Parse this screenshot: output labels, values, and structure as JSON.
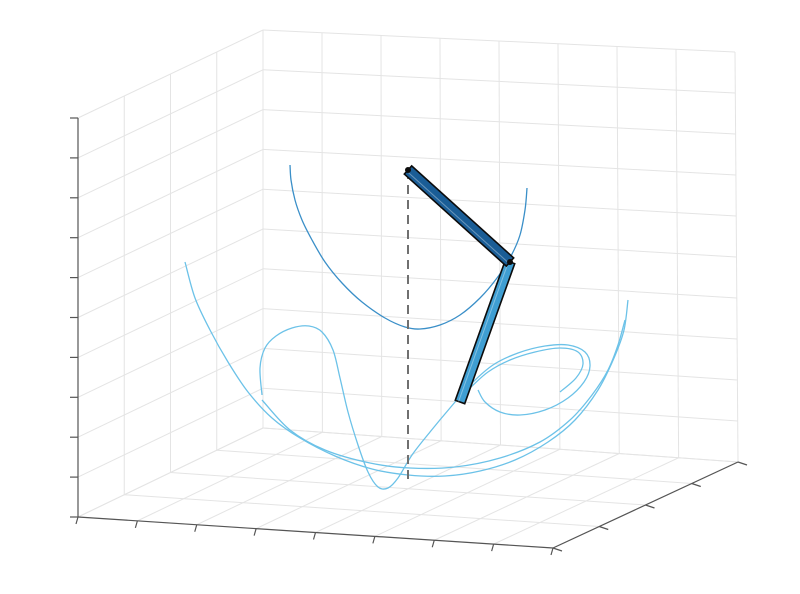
{
  "chart_data": {
    "type": "3d-line",
    "title": "",
    "xlabel": "",
    "ylabel": "",
    "zlabel": "",
    "grid": true,
    "view": "3d-perspective",
    "colors": {
      "upper_arc": "#3a8fc8",
      "lower_trace": "#6cc2e8",
      "link_1": "#1a5d96",
      "link_2": "#3f9ed2",
      "link_outline": "#0c0c0c",
      "pivot_line": "#707070",
      "grid": "#e4e4e4",
      "axis": "#555555"
    },
    "series": [
      {
        "role": "upper-arc",
        "points": [
          [
            290,
            165
          ],
          [
            291,
            180
          ],
          [
            295,
            200
          ],
          [
            302,
            220
          ],
          [
            312,
            240
          ],
          [
            325,
            262
          ],
          [
            342,
            283
          ],
          [
            362,
            302
          ],
          [
            385,
            318
          ],
          [
            405,
            327
          ],
          [
            420,
            329
          ],
          [
            440,
            325
          ],
          [
            460,
            315
          ],
          [
            480,
            298
          ],
          [
            497,
            278
          ],
          [
            511,
            256
          ],
          [
            520,
            235
          ],
          [
            525,
            210
          ],
          [
            527,
            188
          ]
        ]
      },
      {
        "role": "lower-envelope",
        "points": [
          [
            185,
            262
          ],
          [
            195,
            298
          ],
          [
            210,
            330
          ],
          [
            228,
            362
          ],
          [
            248,
            392
          ],
          [
            272,
            418
          ],
          [
            300,
            438
          ],
          [
            335,
            456
          ],
          [
            372,
            469
          ],
          [
            408,
            475
          ],
          [
            445,
            476
          ],
          [
            480,
            471
          ],
          [
            515,
            460
          ],
          [
            548,
            442
          ],
          [
            575,
            420
          ],
          [
            598,
            390
          ],
          [
            614,
            358
          ],
          [
            624,
            330
          ],
          [
            628,
            300
          ]
        ]
      },
      {
        "role": "lower-envelope-2",
        "points": [
          [
            262,
            400
          ],
          [
            290,
            430
          ],
          [
            325,
            450
          ],
          [
            370,
            463
          ],
          [
            410,
            468
          ],
          [
            455,
            467
          ],
          [
            500,
            458
          ],
          [
            540,
            442
          ],
          [
            570,
            420
          ],
          [
            592,
            395
          ],
          [
            608,
            370
          ],
          [
            618,
            345
          ],
          [
            625,
            320
          ]
        ]
      },
      {
        "role": "looping-trace",
        "points": [
          [
            262,
            395
          ],
          [
            260,
            368
          ],
          [
            265,
            348
          ],
          [
            276,
            336
          ],
          [
            292,
            328
          ],
          [
            309,
            326
          ],
          [
            322,
            332
          ],
          [
            333,
            350
          ],
          [
            340,
            378
          ],
          [
            348,
            412
          ],
          [
            358,
            445
          ],
          [
            368,
            472
          ],
          [
            378,
            487
          ],
          [
            388,
            488
          ],
          [
            398,
            478
          ],
          [
            412,
            455
          ],
          [
            430,
            432
          ],
          [
            450,
            408
          ],
          [
            470,
            385
          ],
          [
            493,
            365
          ],
          [
            518,
            353
          ],
          [
            545,
            346
          ],
          [
            568,
            345
          ],
          [
            585,
            352
          ],
          [
            590,
            366
          ],
          [
            584,
            382
          ],
          [
            568,
            398
          ],
          [
            545,
            410
          ],
          [
            520,
            415
          ],
          [
            500,
            412
          ],
          [
            485,
            402
          ],
          [
            478,
            390
          ]
        ]
      },
      {
        "role": "looping-trace-2",
        "points": [
          [
            470,
            388
          ],
          [
            488,
            372
          ],
          [
            510,
            360
          ],
          [
            535,
            352
          ],
          [
            560,
            348
          ],
          [
            578,
            352
          ],
          [
            583,
            364
          ],
          [
            576,
            378
          ],
          [
            560,
            392
          ]
        ]
      }
    ],
    "pendulum": {
      "pivot": [
        408,
        170
      ],
      "elbow": [
        510,
        262
      ],
      "tip": [
        460,
        402
      ],
      "pivot_drop": [
        408,
        485
      ]
    }
  }
}
